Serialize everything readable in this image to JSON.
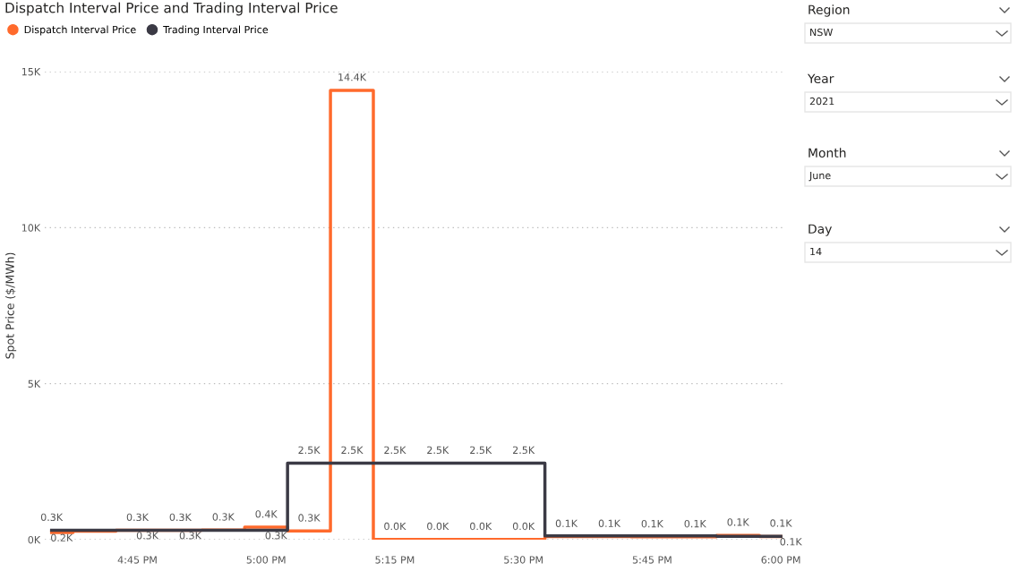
{
  "chart_data": [
    {
      "type": "step",
      "title": "Dispatch Interval Price and Trading Interval Price",
      "ylabel": "Spot Price ($/MWh)",
      "x": [
        16.5833,
        16.6667,
        16.75,
        16.8333,
        16.9167,
        17.0,
        17.0833,
        17.1667,
        17.25,
        17.3333,
        17.4167,
        17.5,
        17.5833,
        17.6667,
        17.75,
        17.8333,
        17.9167,
        18.0
      ],
      "series": [
        {
          "name": "Dispatch Interval Price",
          "color": "#ff6a2c",
          "values": [
            230,
            270,
            300,
            300,
            310,
            400,
            280,
            14400,
            10,
            10,
            10,
            10,
            100,
            100,
            90,
            90,
            140,
            100
          ],
          "value_labels": [
            "0.2K",
            null,
            "0.3K",
            "0.3K",
            "0.3K",
            "0.4K",
            "0.3K",
            "14.4K",
            "0.0K",
            "0.0K",
            "0.0K",
            "0.0K",
            "0.1K",
            "0.1K",
            "0.1K",
            "0.1K",
            "0.1K",
            "0.1K"
          ]
        },
        {
          "name": "Trading Interval Price",
          "color": "#3b3a45",
          "values": [
            300,
            300,
            300,
            300,
            300,
            300,
            2450,
            2450,
            2450,
            2450,
            2450,
            2450,
            120,
            120,
            120,
            120,
            110,
            110
          ],
          "value_labels": [
            "0.3K",
            null,
            "0.3K",
            "0.3K",
            null,
            "0.3K",
            "2.5K",
            "2.5K",
            "2.5K",
            "2.5K",
            "2.5K",
            "2.5K",
            null,
            null,
            null,
            null,
            null,
            "0.1K"
          ]
        }
      ],
      "xlim": [
        16.57,
        18.005
      ],
      "ylim": [
        0,
        15000
      ],
      "xticks": [
        {
          "value": 16.75,
          "label": "4:45 PM"
        },
        {
          "value": 17.0,
          "label": "5:00 PM"
        },
        {
          "value": 17.25,
          "label": "5:15 PM"
        },
        {
          "value": 17.5,
          "label": "5:30 PM"
        },
        {
          "value": 17.75,
          "label": "5:45 PM"
        },
        {
          "value": 18.0,
          "label": "6:00 PM"
        }
      ],
      "yticks": [
        {
          "value": 0,
          "label": "0K"
        },
        {
          "value": 5000,
          "label": "5K"
        },
        {
          "value": 10000,
          "label": "10K"
        },
        {
          "value": 15000,
          "label": "15K"
        }
      ],
      "grid": "y",
      "legend": "top left",
      "marker": "none",
      "line_style": "solid"
    },
    {
      "type": "other",
      "annotations": [
        "Region",
        "NSW",
        "Year",
        "2021",
        "Month",
        "June",
        "Day",
        "14"
      ]
    }
  ]
}
